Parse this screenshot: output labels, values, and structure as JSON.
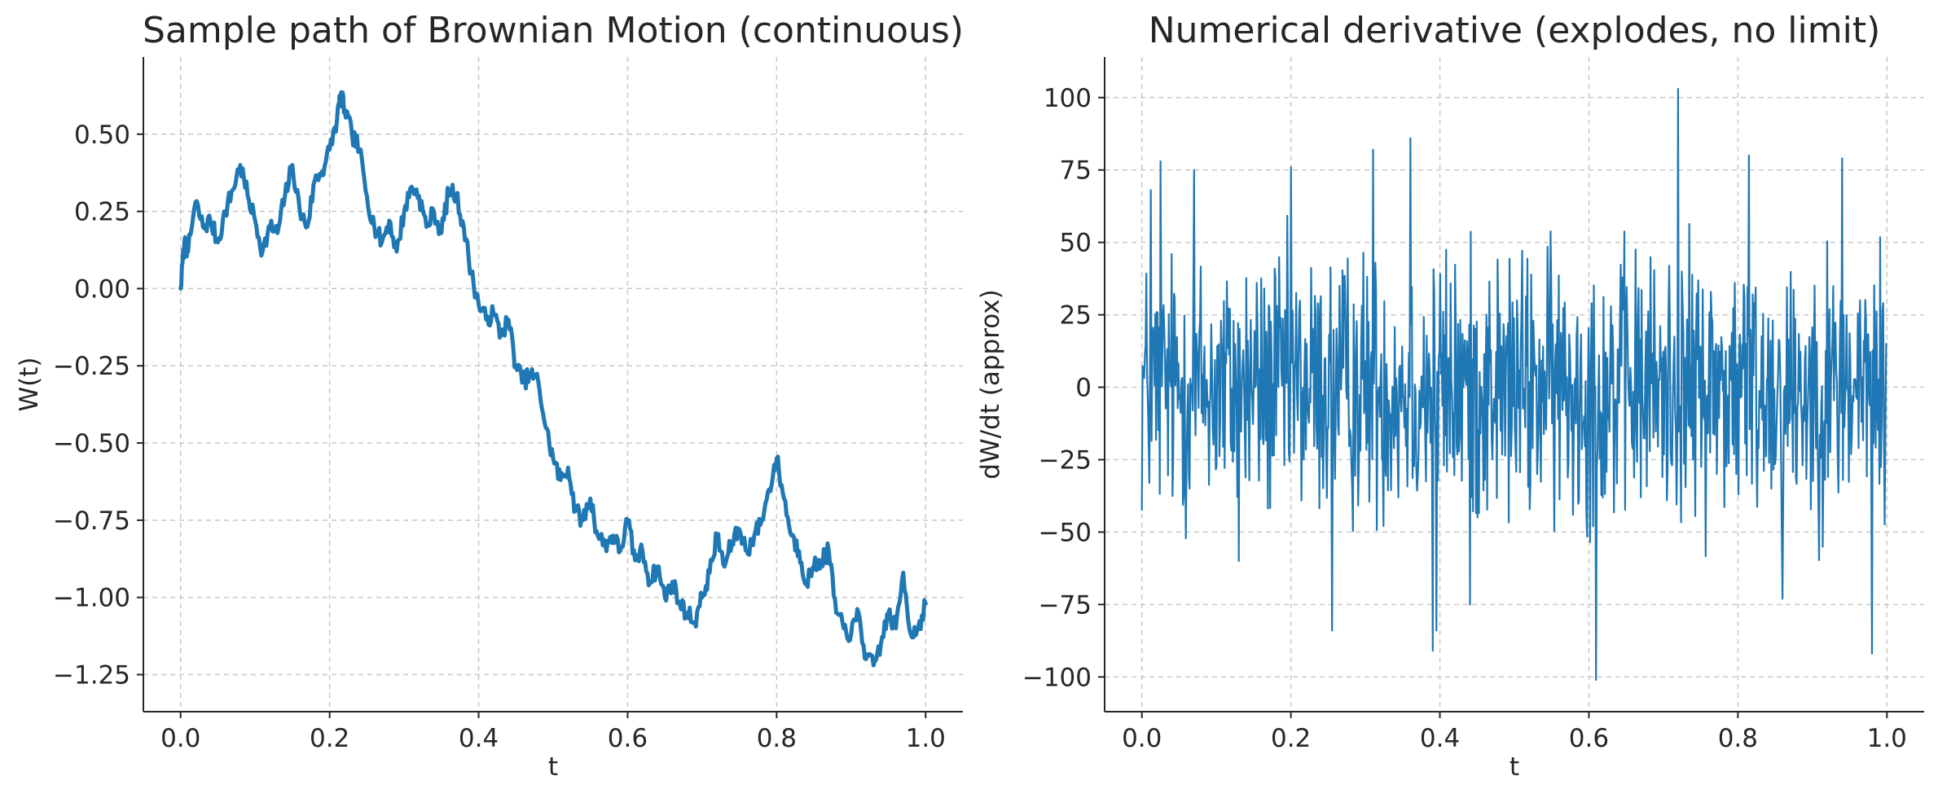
{
  "chart_data": [
    {
      "type": "line",
      "title": "Sample path of Brownian Motion (continuous)",
      "xlabel": "t",
      "ylabel": "W(t)",
      "xlim": [
        -0.05,
        1.05
      ],
      "ylim": [
        -1.37,
        0.75
      ],
      "xticks": [
        0.0,
        0.2,
        0.4,
        0.6,
        0.8,
        1.0
      ],
      "xtick_labels": [
        "0.0",
        "0.2",
        "0.4",
        "0.6",
        "0.8",
        "1.0"
      ],
      "yticks": [
        0.5,
        0.25,
        0.0,
        -0.25,
        -0.5,
        -0.75,
        -1.0,
        -1.25
      ],
      "ytick_labels": [
        "0.50",
        "0.25",
        "0.00",
        "−0.25",
        "−0.50",
        "−0.75",
        "−1.00",
        "−1.25"
      ],
      "grid": true,
      "color": "#1f77b4",
      "series": [
        {
          "x": [
            0.0,
            0.005,
            0.01,
            0.02,
            0.03,
            0.04,
            0.05,
            0.06,
            0.07,
            0.08,
            0.09,
            0.1,
            0.11,
            0.12,
            0.13,
            0.14,
            0.15,
            0.16,
            0.17,
            0.18,
            0.19,
            0.2,
            0.21,
            0.215,
            0.22,
            0.23,
            0.24,
            0.25,
            0.26,
            0.27,
            0.28,
            0.29,
            0.3,
            0.31,
            0.32,
            0.33,
            0.34,
            0.35,
            0.36,
            0.37,
            0.38,
            0.39,
            0.4,
            0.41,
            0.42,
            0.43,
            0.44,
            0.45,
            0.46,
            0.47,
            0.48,
            0.49,
            0.5,
            0.51,
            0.52,
            0.53,
            0.54,
            0.55,
            0.56,
            0.57,
            0.58,
            0.59,
            0.6,
            0.61,
            0.62,
            0.63,
            0.64,
            0.65,
            0.66,
            0.67,
            0.68,
            0.69,
            0.7,
            0.71,
            0.72,
            0.73,
            0.74,
            0.75,
            0.76,
            0.77,
            0.78,
            0.79,
            0.8,
            0.81,
            0.82,
            0.83,
            0.84,
            0.85,
            0.86,
            0.87,
            0.88,
            0.89,
            0.9,
            0.91,
            0.92,
            0.93,
            0.94,
            0.95,
            0.96,
            0.97,
            0.98,
            0.99,
            1.0
          ],
          "y": [
            0.0,
            0.15,
            0.12,
            0.28,
            0.2,
            0.22,
            0.15,
            0.25,
            0.32,
            0.4,
            0.3,
            0.22,
            0.12,
            0.2,
            0.18,
            0.3,
            0.4,
            0.25,
            0.2,
            0.35,
            0.38,
            0.45,
            0.55,
            0.63,
            0.58,
            0.5,
            0.45,
            0.3,
            0.2,
            0.15,
            0.22,
            0.12,
            0.25,
            0.33,
            0.3,
            0.2,
            0.25,
            0.18,
            0.32,
            0.3,
            0.2,
            0.05,
            -0.05,
            -0.1,
            -0.08,
            -0.15,
            -0.1,
            -0.25,
            -0.3,
            -0.28,
            -0.3,
            -0.45,
            -0.55,
            -0.62,
            -0.58,
            -0.72,
            -0.75,
            -0.68,
            -0.8,
            -0.83,
            -0.8,
            -0.85,
            -0.75,
            -0.88,
            -0.85,
            -0.95,
            -0.9,
            -1.0,
            -0.95,
            -1.02,
            -1.05,
            -1.08,
            -1.0,
            -0.92,
            -0.8,
            -0.9,
            -0.82,
            -0.78,
            -0.85,
            -0.8,
            -0.75,
            -0.65,
            -0.55,
            -0.68,
            -0.8,
            -0.85,
            -0.95,
            -0.9,
            -0.88,
            -0.85,
            -1.05,
            -1.1,
            -1.12,
            -1.05,
            -1.2,
            -1.22,
            -1.15,
            -1.05,
            -1.1,
            -0.92,
            -1.12,
            -1.1,
            -1.02
          ]
        }
      ]
    },
    {
      "type": "line",
      "title": "Numerical derivative (explodes, no limit)",
      "xlabel": "t",
      "ylabel": "dW/dt (approx)",
      "xlim": [
        -0.05,
        1.05
      ],
      "ylim": [
        -112,
        114
      ],
      "xticks": [
        0.0,
        0.2,
        0.4,
        0.6,
        0.8,
        1.0
      ],
      "xtick_labels": [
        "0.0",
        "0.2",
        "0.4",
        "0.6",
        "0.8",
        "1.0"
      ],
      "yticks": [
        100,
        75,
        50,
        25,
        0,
        -25,
        -50,
        -75,
        -100
      ],
      "ytick_labels": [
        "100",
        "75",
        "50",
        "25",
        "0",
        "−25",
        "−50",
        "−75",
        "−100"
      ],
      "grid": true,
      "color": "#1f77b4",
      "series": [
        {
          "x_start": 0.0,
          "x_end": 0.999,
          "spikes": [
            {
              "x": 0.012,
              "y": 68
            },
            {
              "x": 0.025,
              "y": 78
            },
            {
              "x": 0.07,
              "y": 75
            },
            {
              "x": 0.2,
              "y": 76
            },
            {
              "x": 0.31,
              "y": 82
            },
            {
              "x": 0.36,
              "y": 86
            },
            {
              "x": 0.72,
              "y": 103
            },
            {
              "x": 0.815,
              "y": 80
            },
            {
              "x": 0.94,
              "y": 79
            },
            {
              "x": 0.13,
              "y": -60
            },
            {
              "x": 0.255,
              "y": -84
            },
            {
              "x": 0.39,
              "y": -91
            },
            {
              "x": 0.395,
              "y": -84
            },
            {
              "x": 0.44,
              "y": -75
            },
            {
              "x": 0.61,
              "y": -101
            },
            {
              "x": 0.86,
              "y": -73
            },
            {
              "x": 0.98,
              "y": -92
            }
          ]
        }
      ]
    }
  ]
}
